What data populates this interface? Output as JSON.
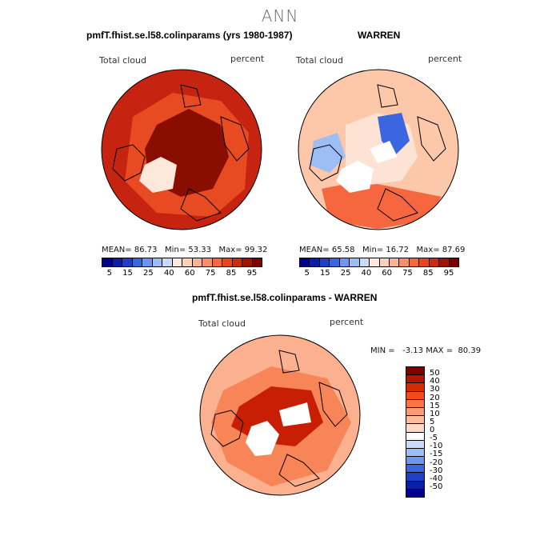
{
  "figure_title": "ANN",
  "panels": [
    {
      "title": "pmfT.fhist.se.l58.colinparams (yrs 1980-1987)",
      "variable": "Total cloud",
      "units": "percent",
      "stats": {
        "mean_label": "MEAN=",
        "mean": "86.73",
        "min_label": "Min=",
        "min": "53.33",
        "max_label": "Max=",
        "max": "99.32"
      }
    },
    {
      "title": "WARREN",
      "variable": "Total cloud",
      "units": "percent",
      "stats": {
        "mean_label": "MEAN=",
        "mean": "65.58",
        "min_label": "Min=",
        "min": "16.72",
        "max_label": "Max=",
        "max": "87.69"
      }
    },
    {
      "title": "pmfT.fhist.se.l58.colinparams - WARREN",
      "variable": "Total cloud",
      "units": "percent",
      "range_text": "MIN =   -3.13 MAX =  80.39"
    }
  ],
  "colorbar_top": {
    "ticks": [
      "5",
      "15",
      "25",
      "40",
      "60",
      "75",
      "85",
      "95"
    ],
    "colors": [
      "#00008b",
      "#0a1ea8",
      "#1e3fc8",
      "#3a66e0",
      "#6e96ee",
      "#9dbdf5",
      "#c8dcf9",
      "#fde8dc",
      "#fdd0b8",
      "#fcb391",
      "#fb8e67",
      "#f6663f",
      "#e8451f",
      "#cc2c0c",
      "#a01400",
      "#800000"
    ]
  },
  "colorbar_diff": {
    "ticks": [
      "50",
      "40",
      "30",
      "20",
      "15",
      "10",
      "5",
      "0",
      "-5",
      "-10",
      "-15",
      "-20",
      "-30",
      "-40",
      "-50"
    ],
    "colors": [
      "#800000",
      "#b01600",
      "#d62a04",
      "#f24a18",
      "#fb7448",
      "#fc9a74",
      "#fdbb9c",
      "#fddac8",
      "#ffffff",
      "#c8dcf9",
      "#9dbdf5",
      "#6e96ee",
      "#3a66e0",
      "#1e3fc8",
      "#0a1ea8",
      "#00008b"
    ]
  },
  "maps": [
    {
      "ocean": "#c62410",
      "mid": "#e84a22",
      "pole": "#8a0e00",
      "center_land": "#fde8dc"
    },
    {
      "ocean": "#fdc7aa",
      "mid": "#f6663f",
      "pole": "#fde3d3",
      "center_land": "#ffffff"
    },
    {
      "ocean": "#fbb090",
      "mid": "#f78558",
      "pole": "#c81e04",
      "center_land": "#ffffff"
    }
  ]
}
